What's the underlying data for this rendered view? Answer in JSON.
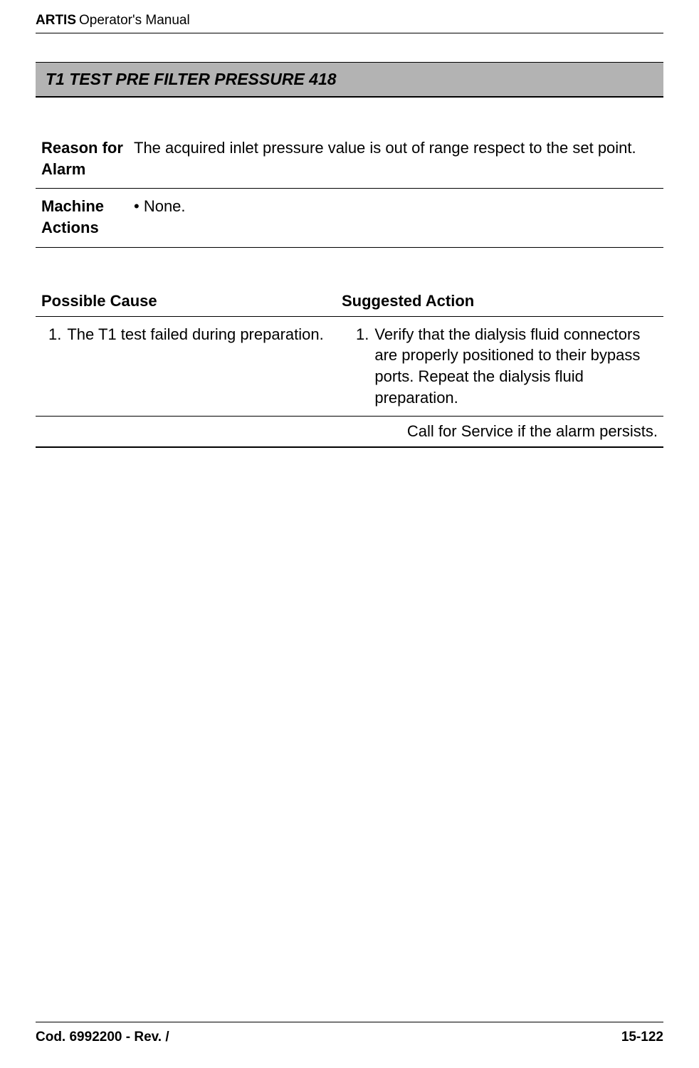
{
  "header": {
    "bold": "ARTIS",
    "normal": "Operator's Manual"
  },
  "section_heading": "T1 TEST PRE FILTER PRESSURE 418",
  "info": {
    "reason_label": "Reason for Alarm",
    "reason_value": "The acquired inlet pressure value is out of range respect to the set point.",
    "actions_label": "Machine Actions",
    "actions_value": "• None."
  },
  "cause_action": {
    "left_header": "Possible Cause",
    "right_header": "Suggested Action",
    "rows": [
      {
        "cause_num": "1.",
        "cause_text": "The T1 test failed during preparation.",
        "action_num": "1.",
        "action_text": "Verify that the dialysis fluid connectors are properly positioned to their bypass ports. Repeat the dialysis fluid preparation."
      }
    ],
    "final_note": "Call for Service if the alarm persists."
  },
  "footer": {
    "left": "Cod. 6992200 - Rev. /",
    "right": "15-122"
  },
  "colors": {
    "heading_bg": "#b3b3b3",
    "border": "#000000",
    "text": "#000000",
    "page_bg": "#ffffff"
  }
}
